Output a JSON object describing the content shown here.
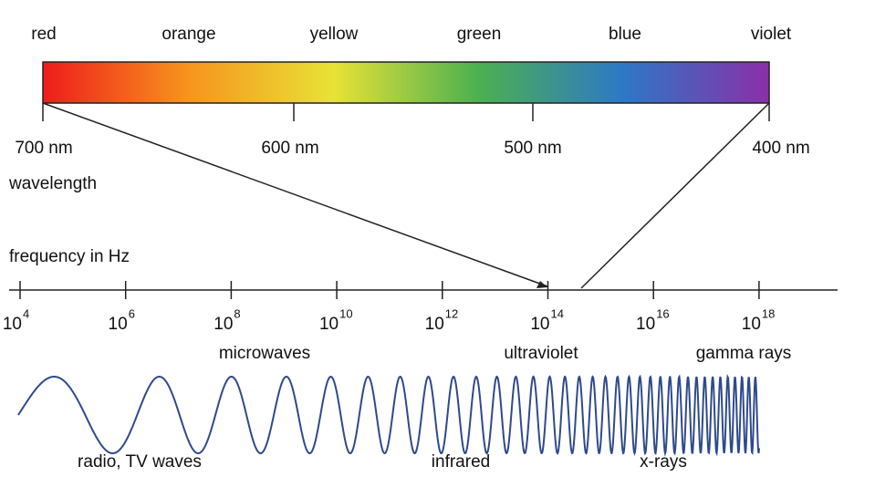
{
  "color_names": [
    "red",
    "orange",
    "yellow",
    "green",
    "blue",
    "violet"
  ],
  "wavelength": {
    "label": "wavelength",
    "ticks": [
      "700 nm",
      "600 nm",
      "500 nm",
      "400 nm"
    ]
  },
  "frequency": {
    "label": "frequency in Hz",
    "ticks": [
      {
        "base": "10",
        "exponent": "4"
      },
      {
        "base": "10",
        "exponent": "6"
      },
      {
        "base": "10",
        "exponent": "8"
      },
      {
        "base": "10",
        "exponent": "10"
      },
      {
        "base": "10",
        "exponent": "12"
      },
      {
        "base": "10",
        "exponent": "14"
      },
      {
        "base": "10",
        "exponent": "16"
      },
      {
        "base": "10",
        "exponent": "18"
      }
    ]
  },
  "bands": [
    "microwaves",
    "ultraviolet",
    "gamma rays",
    "radio, TV waves",
    "infrared",
    "x-rays"
  ]
}
